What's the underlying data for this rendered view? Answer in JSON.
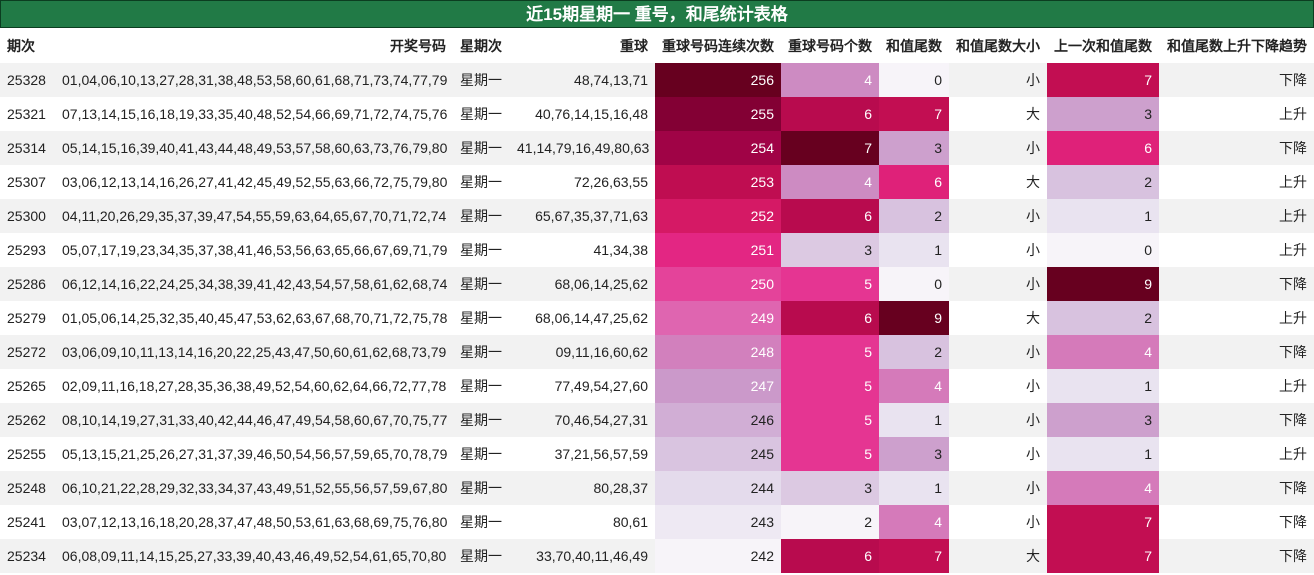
{
  "title": "近15期星期一 重号，和尾统计表格",
  "table": {
    "header": [
      "期次",
      "开奖号码",
      "星期次",
      "重球",
      "重球号码连续次数",
      "重球号码个数",
      "和值尾数",
      "和值尾数大小",
      "上一次和值尾数",
      "和值尾数上升下降趋势"
    ],
    "rows": [
      [
        25328,
        "01,04,06,10,13,27,28,31,38,48,53,58,60,61,68,71,73,74,77,79",
        "星期一",
        "48,74,13,71",
        256,
        4,
        0,
        "小",
        7,
        "下降"
      ],
      [
        25321,
        "07,13,14,15,16,18,19,33,35,40,48,52,54,66,69,71,72,74,75,76",
        "星期一",
        "40,76,14,15,16,48",
        255,
        6,
        7,
        "大",
        3,
        "上升"
      ],
      [
        25314,
        "05,14,15,16,39,40,41,43,44,48,49,53,57,58,60,63,73,76,79,80",
        "星期一",
        "41,14,79,16,49,80,63",
        254,
        7,
        3,
        "小",
        6,
        "下降"
      ],
      [
        25307,
        "03,06,12,13,14,16,26,27,41,42,45,49,52,55,63,66,72,75,79,80",
        "星期一",
        "72,26,63,55",
        253,
        4,
        6,
        "大",
        2,
        "上升"
      ],
      [
        25300,
        "04,11,20,26,29,35,37,39,47,54,55,59,63,64,65,67,70,71,72,74",
        "星期一",
        "65,67,35,37,71,63",
        252,
        6,
        2,
        "小",
        1,
        "上升"
      ],
      [
        25293,
        "05,07,17,19,23,34,35,37,38,41,46,53,56,63,65,66,67,69,71,79",
        "星期一",
        "41,34,38",
        251,
        3,
        1,
        "小",
        0,
        "上升"
      ],
      [
        25286,
        "06,12,14,16,22,24,25,34,38,39,41,42,43,54,57,58,61,62,68,74",
        "星期一",
        "68,06,14,25,62",
        250,
        5,
        0,
        "小",
        9,
        "下降"
      ],
      [
        25279,
        "01,05,06,14,25,32,35,40,45,47,53,62,63,67,68,70,71,72,75,78",
        "星期一",
        "68,06,14,47,25,62",
        249,
        6,
        9,
        "大",
        2,
        "上升"
      ],
      [
        25272,
        "03,06,09,10,11,13,14,16,20,22,25,43,47,50,60,61,62,68,73,79",
        "星期一",
        "09,11,16,60,62",
        248,
        5,
        2,
        "小",
        4,
        "下降"
      ],
      [
        25265,
        "02,09,11,16,18,27,28,35,36,38,49,52,54,60,62,64,66,72,77,78",
        "星期一",
        "77,49,54,27,60",
        247,
        5,
        4,
        "小",
        1,
        "上升"
      ],
      [
        25262,
        "08,10,14,19,27,31,33,40,42,44,46,47,49,54,58,60,67,70,75,77",
        "星期一",
        "70,46,54,27,31",
        246,
        5,
        1,
        "小",
        3,
        "下降"
      ],
      [
        25255,
        "05,13,15,21,25,26,27,31,37,39,46,50,54,56,57,59,65,70,78,79",
        "星期一",
        "37,21,56,57,59",
        245,
        5,
        3,
        "小",
        1,
        "上升"
      ],
      [
        25248,
        "06,10,21,22,28,29,32,33,34,37,43,49,51,52,55,56,57,59,67,80",
        "星期一",
        "80,28,37",
        244,
        3,
        1,
        "小",
        4,
        "下降"
      ],
      [
        25241,
        "03,07,12,13,16,18,20,28,37,47,48,50,53,61,63,68,69,75,76,80",
        "星期一",
        "80,61",
        243,
        2,
        4,
        "小",
        7,
        "下降"
      ],
      [
        25234,
        "06,08,09,11,14,15,25,27,33,39,40,43,46,49,52,54,61,65,70,80",
        "星期一",
        "33,70,40,11,46,49",
        242,
        6,
        7,
        "大",
        7,
        "下降"
      ]
    ]
  }
}
